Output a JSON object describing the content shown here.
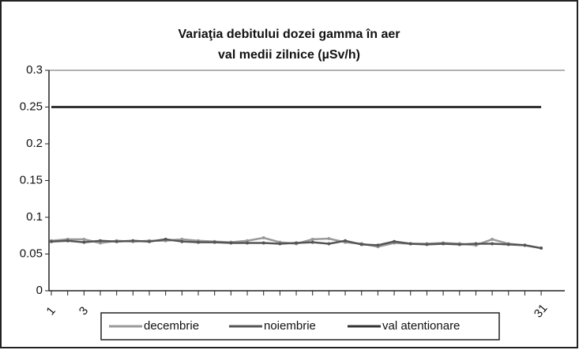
{
  "chart_data": {
    "type": "line",
    "title": [
      "Variaţia debitului dozei gamma în aer",
      "val medii zilnice (µSv/h)"
    ],
    "categories": [
      "1",
      null,
      "3",
      null,
      null,
      null,
      null,
      null,
      null,
      null,
      null,
      null,
      null,
      null,
      null,
      null,
      null,
      null,
      null,
      null,
      null,
      null,
      null,
      null,
      null,
      null,
      null,
      null,
      null,
      null,
      "31"
    ],
    "series": [
      {
        "name": "decembrie",
        "color": "#9a9a9a",
        "values": [
          0.068,
          0.07,
          0.07,
          0.065,
          0.068,
          0.067,
          0.068,
          0.068,
          0.07,
          0.068,
          0.067,
          0.066,
          0.068,
          0.072,
          0.066,
          0.064,
          0.07,
          0.071,
          0.066,
          0.064,
          0.06,
          0.065,
          0.064,
          0.064,
          0.065,
          0.064,
          0.062,
          0.07,
          0.064,
          0.062,
          0.058
        ]
      },
      {
        "name": "noiembrie",
        "color": "#555555",
        "values": [
          0.067,
          0.068,
          0.066,
          0.068,
          0.067,
          0.068,
          0.067,
          0.07,
          0.067,
          0.066,
          0.066,
          0.065,
          0.065,
          0.065,
          0.064,
          0.065,
          0.066,
          0.064,
          0.068,
          0.063,
          0.062,
          0.067,
          0.064,
          0.063,
          0.064,
          0.063,
          0.064,
          0.064,
          0.063,
          0.062,
          0.058
        ]
      },
      {
        "name": "val atentionare",
        "color": "#333333",
        "values": [
          0.25,
          0.25,
          0.25,
          0.25,
          0.25,
          0.25,
          0.25,
          0.25,
          0.25,
          0.25,
          0.25,
          0.25,
          0.25,
          0.25,
          0.25,
          0.25,
          0.25,
          0.25,
          0.25,
          0.25,
          0.25,
          0.25,
          0.25,
          0.25,
          0.25,
          0.25,
          0.25,
          0.25,
          0.25,
          0.25,
          0.25
        ]
      }
    ],
    "ylim": [
      0,
      0.3
    ],
    "yticks": [
      0,
      0.05,
      0.1,
      0.15,
      0.2,
      0.25,
      0.3
    ],
    "grid": false,
    "legend": "bottom"
  }
}
